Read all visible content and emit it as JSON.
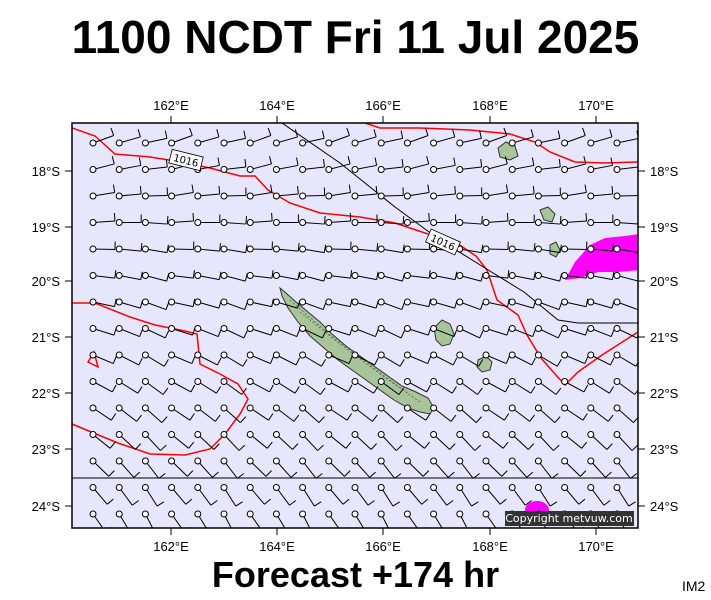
{
  "header": {
    "title": "1100 NCDT Fri 11 Jul 2025"
  },
  "footer": {
    "forecast_label": "Forecast +174 hr",
    "model_tag": "IM2"
  },
  "credit": "Copyright metvuw.com",
  "colors": {
    "sea": "#e6e6fc",
    "land": "#a8c49a",
    "isobar": "#ff0000",
    "heavy_rain": "#ff00ff",
    "wind_barb": "#000000"
  },
  "axes": {
    "lon_ticks": [
      "162°E",
      "164°E",
      "166°E",
      "168°E",
      "170°E"
    ],
    "lat_ticks": [
      "18°S",
      "19°S",
      "20°S",
      "21°S",
      "22°S",
      "23°S",
      "24°S"
    ]
  },
  "isobar_labels": [
    "1016",
    "1016"
  ]
}
